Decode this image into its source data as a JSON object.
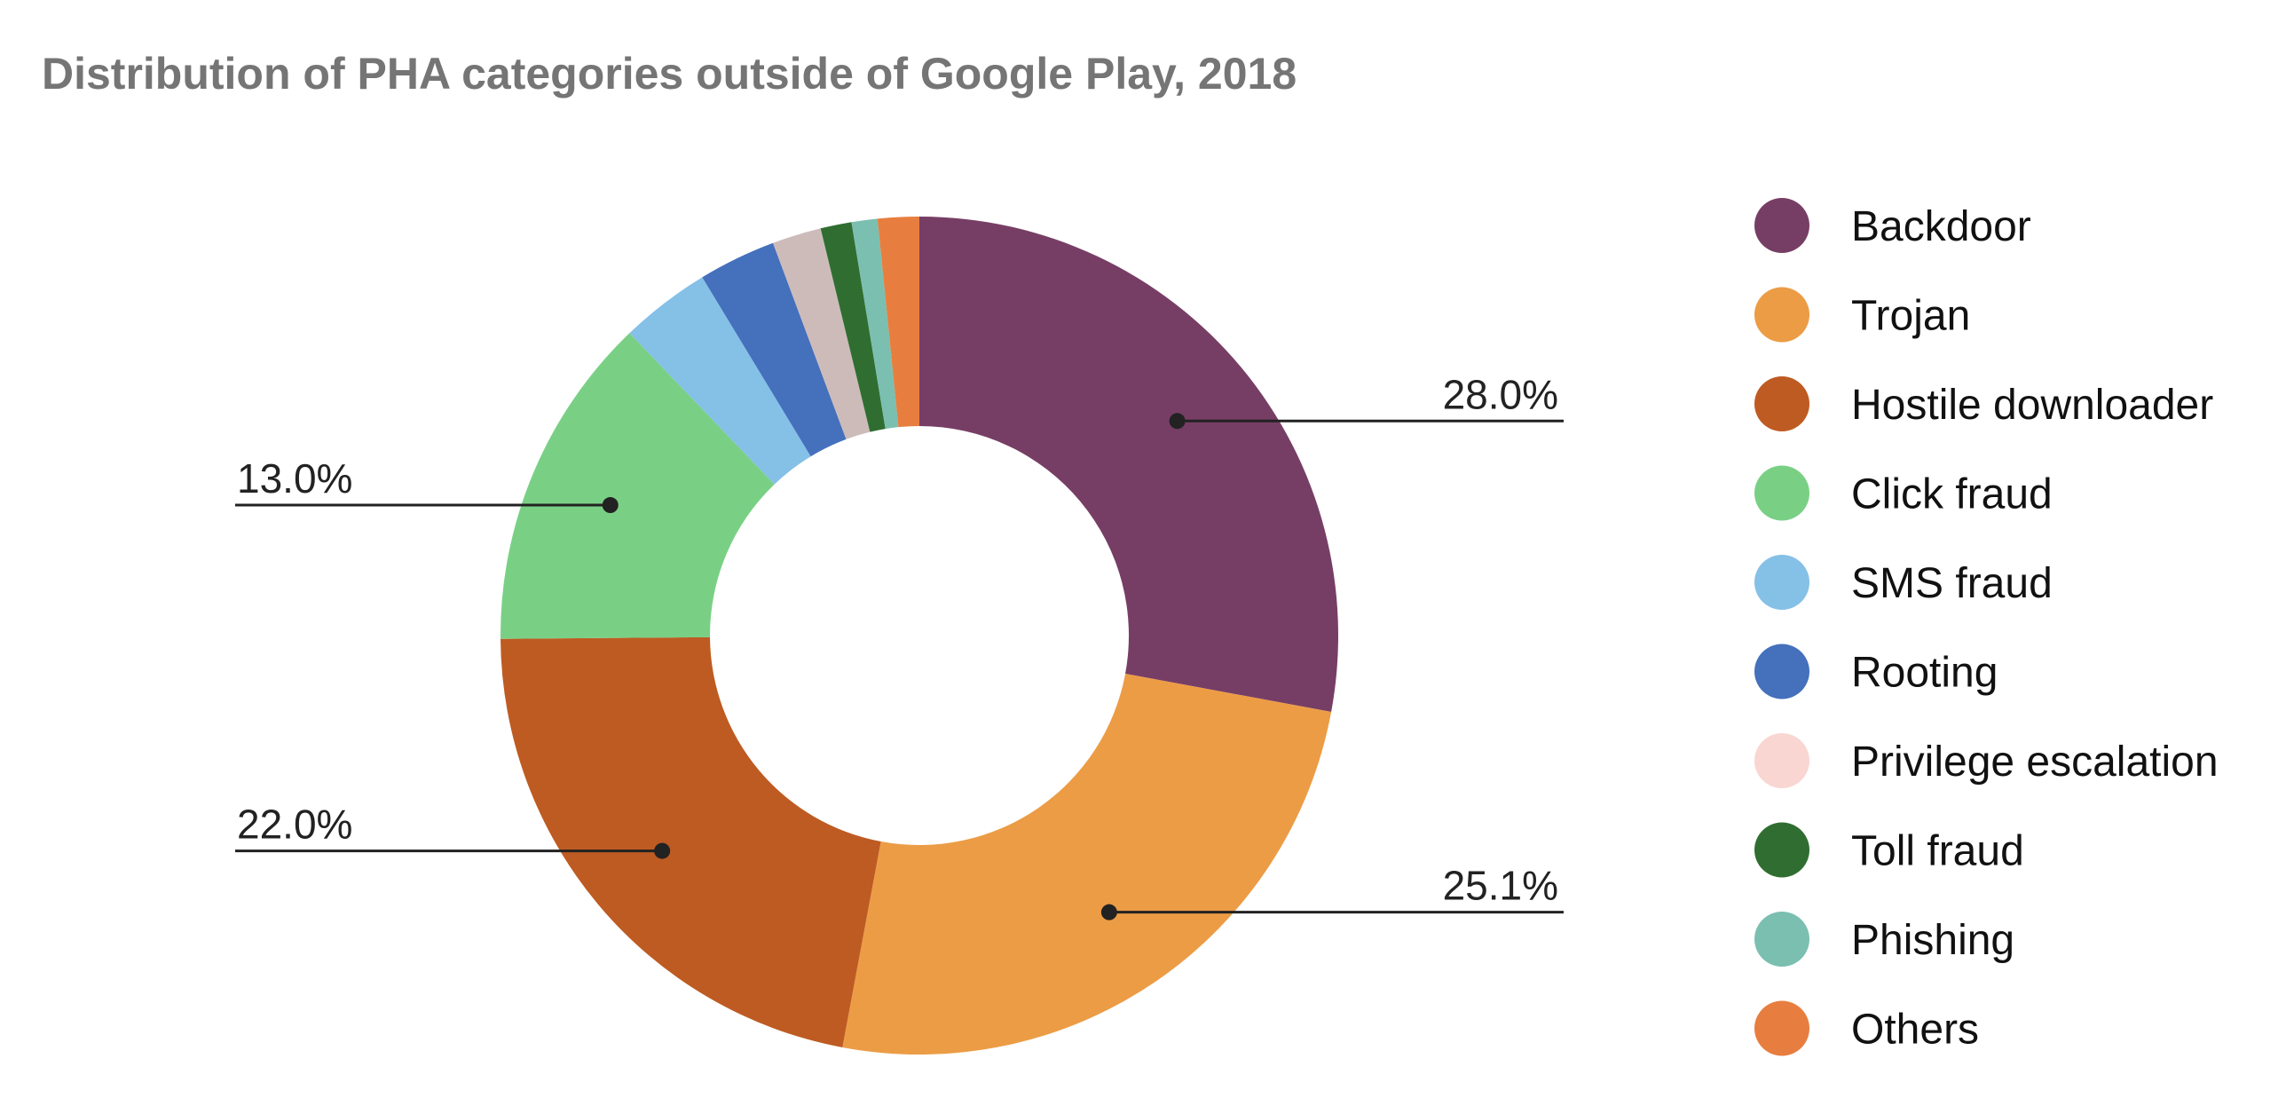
{
  "chart_data": {
    "type": "pie",
    "donut": true,
    "title": "Distribution of PHA categories outside of Google Play, 2018",
    "series": [
      {
        "name": "Backdoor",
        "value": 28.0,
        "label": "28.0%",
        "color": "#773E65"
      },
      {
        "name": "Trojan",
        "value": 25.1,
        "label": "25.1%",
        "color": "#EC9C45"
      },
      {
        "name": "Hostile downloader",
        "value": 22.0,
        "label": "22.0%",
        "color": "#BE5B22"
      },
      {
        "name": "Click fraud",
        "value": 13.0,
        "label": "13.0%",
        "color": "#79D085"
      },
      {
        "name": "SMS fraud",
        "value": 3.5,
        "label": "",
        "color": "#85C0E7"
      },
      {
        "name": "Rooting",
        "value": 3.0,
        "label": "",
        "color": "#4470BC"
      },
      {
        "name": "Privilege escalation",
        "value": 1.9,
        "label": "",
        "color": "#CDBBBA",
        "legend_color": "#F9D6D2"
      },
      {
        "name": "Toll fraud",
        "value": 1.2,
        "label": "",
        "color": "#2F6E30"
      },
      {
        "name": "Phishing",
        "value": 1.0,
        "label": "",
        "color": "#7BBFB1"
      },
      {
        "name": "Others",
        "value": 1.6,
        "label": "",
        "color": "#E77E3F"
      }
    ],
    "legend_position": "right"
  }
}
